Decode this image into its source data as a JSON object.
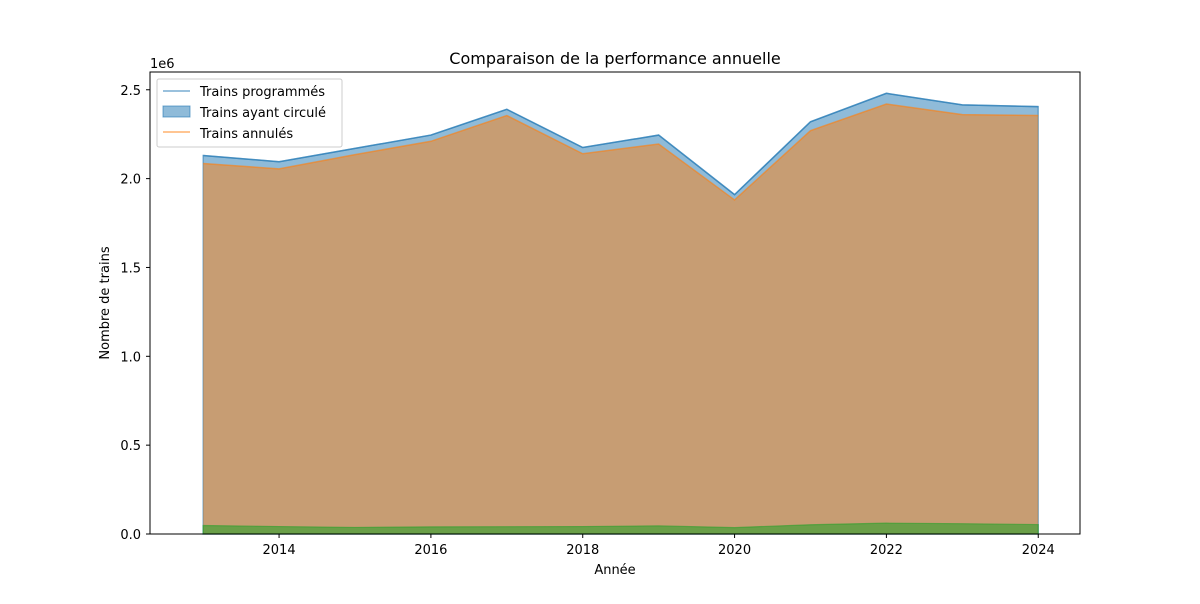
{
  "chart_data": {
    "type": "area",
    "title": "Comparaison de la performance annuelle",
    "xlabel": "Année",
    "ylabel": "Nombre de trains",
    "y_offset_label": "1e6",
    "x": [
      2013,
      2014,
      2015,
      2016,
      2017,
      2018,
      2019,
      2020,
      2021,
      2022,
      2023,
      2024
    ],
    "xlim": [
      2012.3,
      2024.55
    ],
    "ylim": [
      0,
      2600000
    ],
    "x_ticks": [
      2014,
      2016,
      2018,
      2020,
      2022,
      2024
    ],
    "x_tick_labels": [
      "2014",
      "2016",
      "2018",
      "2020",
      "2022",
      "2024"
    ],
    "y_ticks": [
      0,
      500000,
      1000000,
      1500000,
      2000000,
      2500000
    ],
    "y_tick_labels": [
      "0.0",
      "0.5",
      "1.0",
      "1.5",
      "2.0",
      "2.5"
    ],
    "grid": false,
    "legend_position": "top-left",
    "series": [
      {
        "name": "Trains programmés",
        "color": "#1f77b4",
        "values": [
          2130000,
          2095000,
          2170000,
          2245000,
          2390000,
          2175000,
          2245000,
          1910000,
          2320000,
          2480000,
          2415000,
          2405000
        ]
      },
      {
        "name": "Trains ayant circulé",
        "color": "#1f77b4",
        "values": [
          2085000,
          2055000,
          2135000,
          2210000,
          2355000,
          2140000,
          2195000,
          1880000,
          2270000,
          2420000,
          2360000,
          2355000
        ]
      },
      {
        "name": "Trains annulés",
        "color": "#ff7f0e",
        "values": [
          2085000,
          2055000,
          2135000,
          2210000,
          2355000,
          2140000,
          2195000,
          1880000,
          2270000,
          2420000,
          2360000,
          2355000
        ]
      },
      {
        "color": "#2ca02c",
        "values": [
          48000,
          42000,
          37000,
          40000,
          41000,
          42000,
          46000,
          36000,
          52000,
          61000,
          58000,
          53000
        ]
      }
    ]
  }
}
